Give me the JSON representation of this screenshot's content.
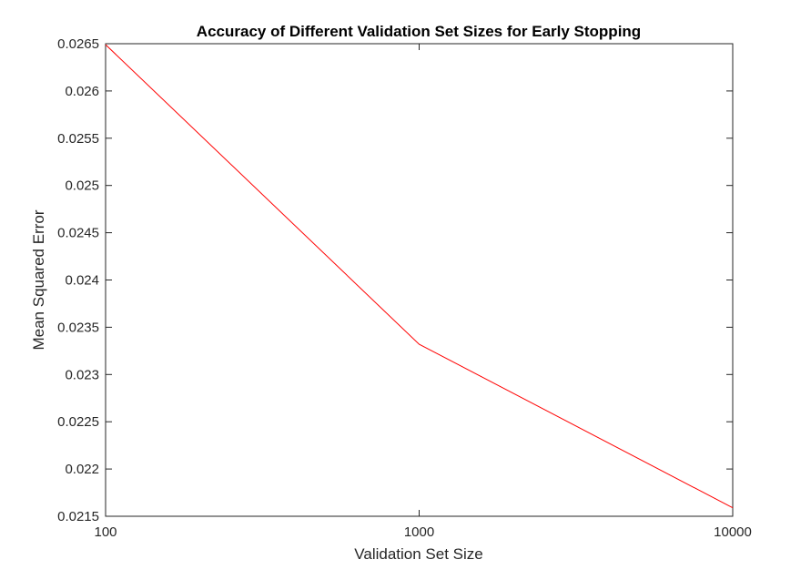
{
  "chart_data": {
    "type": "line",
    "title": "Accuracy of Different Validation Set Sizes for Early Stopping",
    "xlabel": "Validation Set Size",
    "ylabel": "Mean Squared Error",
    "xscale": "log",
    "xlim": [
      100,
      10000
    ],
    "ylim": [
      0.0215,
      0.0265
    ],
    "xticks": [
      100,
      1000,
      10000
    ],
    "xtick_labels": [
      "100",
      "1000",
      "10000"
    ],
    "yticks": [
      0.0215,
      0.022,
      0.0225,
      0.023,
      0.0235,
      0.024,
      0.0245,
      0.025,
      0.0255,
      0.026,
      0.0265
    ],
    "ytick_labels": [
      "0.0215",
      "0.022",
      "0.0225",
      "0.023",
      "0.0235",
      "0.024",
      "0.0245",
      "0.025",
      "0.0255",
      "0.026",
      "0.0265"
    ],
    "grid": false,
    "legend": "none",
    "series": [
      {
        "color": "#ff0000",
        "x": [
          100,
          1000,
          10000
        ],
        "y": [
          0.02649,
          0.02332,
          0.02159
        ]
      }
    ]
  }
}
